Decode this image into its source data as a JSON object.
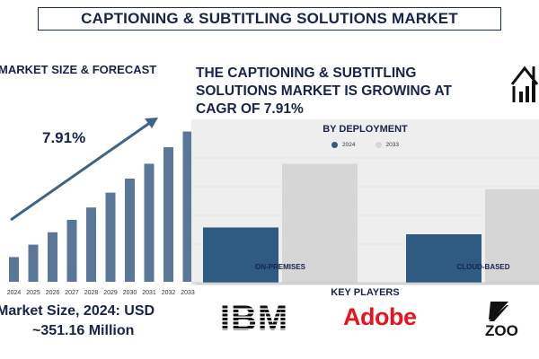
{
  "header": {
    "title": "CAPTIONING & SUBTITLING SOLUTIONS MARKET"
  },
  "left": {
    "title": "MARKET SIZE & FORECAST",
    "cagr_label": "7.91%",
    "footer_line1": "Market Size, 2024: USD",
    "footer_line2": "~351.16 Million"
  },
  "right": {
    "title": "THE CAPTIONING & SUBTITLING SOLUTIONS MARKET IS GROWING AT CAGR OF 7.91%",
    "panel_title": "BY DEPLOYMENT",
    "key_players_title": "KEY PLAYERS",
    "players": [
      "IBM",
      "Adobe",
      "ZOO"
    ],
    "icon": "house-growth-icon"
  },
  "colors": {
    "navy": "#17224d",
    "bar_blue": "#5a7797",
    "dark_blue": "#2f5a82",
    "light_gray": "#d6d6d6",
    "adobe_red": "#e8131b"
  },
  "chart_data": [
    {
      "type": "bar",
      "title": "MARKET SIZE & FORECAST",
      "categories": [
        "2024",
        "2025",
        "2026",
        "2027",
        "2028",
        "2029",
        "2030",
        "2031",
        "2032",
        "2033"
      ],
      "values": [
        30,
        45,
        60,
        75,
        90,
        108,
        125,
        143,
        163,
        182
      ],
      "ylim": [
        0,
        200
      ],
      "annotation": "7.91%"
    },
    {
      "type": "bar",
      "title": "BY DEPLOYMENT",
      "categories": [
        "ON-PREMISES",
        "CLOUD-BASED"
      ],
      "series": [
        {
          "name": "2024",
          "values": [
            65,
            57
          ]
        },
        {
          "name": "2033",
          "values": [
            140,
            110
          ]
        }
      ],
      "ylim": [
        0,
        150
      ],
      "legend": "top"
    }
  ]
}
